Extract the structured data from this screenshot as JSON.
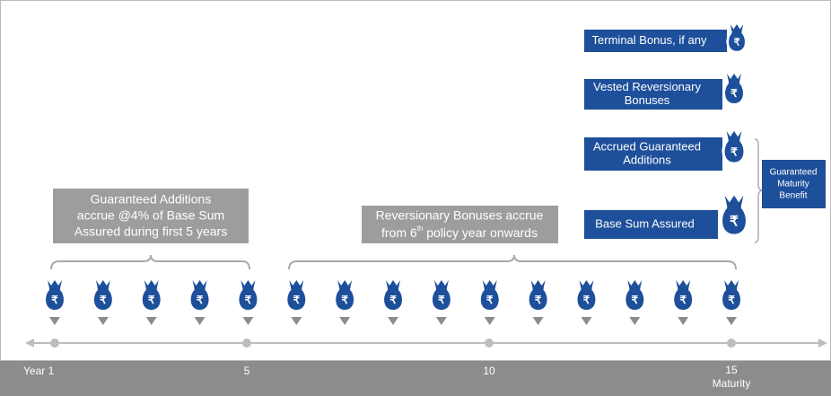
{
  "currency_symbol": "₹",
  "timeline": {
    "labels": [
      "Year 1",
      "5",
      "10",
      "15"
    ],
    "maturity": "Maturity"
  },
  "guaranteed_additions_note": [
    "Guaranteed Additions",
    "accrue @4% of Base Sum",
    "Assured during first 5 years"
  ],
  "reversionary_note": {
    "line1": "Reversionary Bonuses accrue",
    "line2_start": "from 6",
    "line2_sup": "th",
    "line2_end": " policy year onwards"
  },
  "benefits": [
    [
      "Terminal Bonus, if any"
    ],
    [
      "Vested Reversionary",
      "Bonuses"
    ],
    [
      "Accrued Guaranteed",
      "Additions"
    ],
    [
      "Base Sum Assured"
    ]
  ],
  "guaranteed_maturity_benefit": [
    "Guaranteed",
    "Maturity",
    "Benefit"
  ]
}
